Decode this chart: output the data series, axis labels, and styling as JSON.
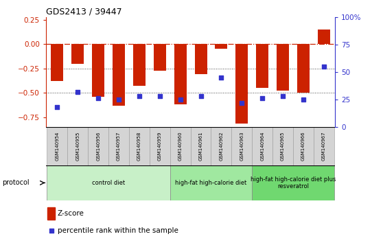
{
  "title": "GDS2413 / 39447",
  "samples": [
    "GSM140954",
    "GSM140955",
    "GSM140956",
    "GSM140957",
    "GSM140958",
    "GSM140959",
    "GSM140960",
    "GSM140961",
    "GSM140962",
    "GSM140963",
    "GSM140964",
    "GSM140965",
    "GSM140966",
    "GSM140967"
  ],
  "z_scores": [
    -0.38,
    -0.2,
    -0.54,
    -0.63,
    -0.43,
    -0.27,
    -0.62,
    -0.31,
    -0.05,
    -0.82,
    -0.45,
    -0.48,
    -0.5,
    0.15
  ],
  "percentile_values": [
    18,
    32,
    26,
    25,
    28,
    28,
    25,
    28,
    45,
    22,
    26,
    28,
    25,
    55
  ],
  "groups": [
    {
      "label": "control diet",
      "start": 0,
      "end": 6,
      "color": "#c8f0c8"
    },
    {
      "label": "high-fat high-calorie diet",
      "start": 6,
      "end": 10,
      "color": "#a0e8a0"
    },
    {
      "label": "high-fat high-calorie diet plus\nresveratrol",
      "start": 10,
      "end": 14,
      "color": "#70d870"
    }
  ],
  "ylim": [
    -0.85,
    0.28
  ],
  "yticks": [
    0.25,
    0.0,
    -0.25,
    -0.5,
    -0.75
  ],
  "right_yticks": [
    100,
    75,
    50,
    25,
    0
  ],
  "bar_color": "#cc2200",
  "dot_color": "#3333cc",
  "hline_color": "#cc2200",
  "dotted_color": "#444444",
  "legend_zscore": "Z-score",
  "legend_prank": "percentile rank within the sample",
  "protocol_label": "protocol"
}
